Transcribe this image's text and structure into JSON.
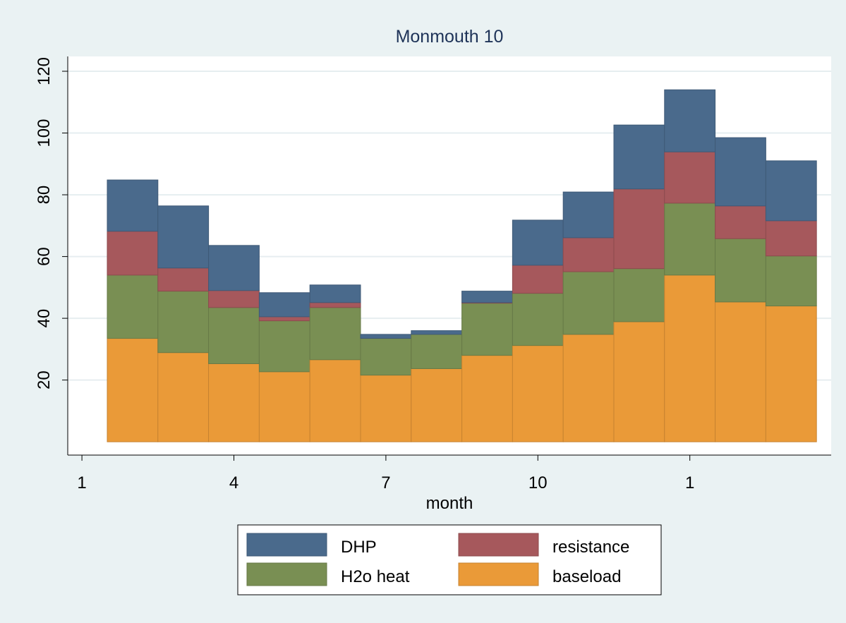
{
  "chart_data": {
    "type": "stacked_bar",
    "title": "Monmouth 10",
    "x_label": "month",
    "x": [
      2,
      3,
      4,
      5,
      6,
      7,
      8,
      9,
      10,
      11,
      12,
      13,
      14,
      15
    ],
    "series": [
      {
        "name": "DHP",
        "color": "#4a6a8c",
        "values": [
          16.6,
          20.1,
          14.6,
          7.8,
          5.7,
          1.3,
          1.2,
          3.7,
          14.6,
          14.8,
          20.7,
          20.1,
          22.1,
          19.4
        ]
      },
      {
        "name": "resistance",
        "color": "#a6585c",
        "values": [
          14.2,
          7.5,
          5.5,
          1.3,
          1.6,
          0,
          0,
          0.2,
          9.1,
          11.0,
          25.8,
          16.6,
          10.6,
          11.4
        ]
      },
      {
        "name": "H2o heat",
        "color": "#798f53",
        "values": [
          20.5,
          19.9,
          18.2,
          16.5,
          16.9,
          11.9,
          11.1,
          16.9,
          16.9,
          20.3,
          17.2,
          23.3,
          20.5,
          16.2
        ]
      },
      {
        "name": "baseload",
        "color": "#ea9a38",
        "values": [
          33.5,
          28.9,
          25.3,
          22.7,
          26.6,
          21.6,
          23.7,
          28.0,
          31.2,
          34.8,
          38.9,
          54.0,
          45.3,
          44.0
        ]
      }
    ],
    "xlim": [
      0.72,
      15.79
    ],
    "xticks": [
      1,
      4,
      7,
      10,
      {
        "value": 13,
        "label": "1"
      }
    ],
    "ylim": [
      -4.3,
      124.8
    ],
    "yticks": [
      20,
      40,
      60,
      80,
      100,
      120
    ],
    "grid": true
  }
}
